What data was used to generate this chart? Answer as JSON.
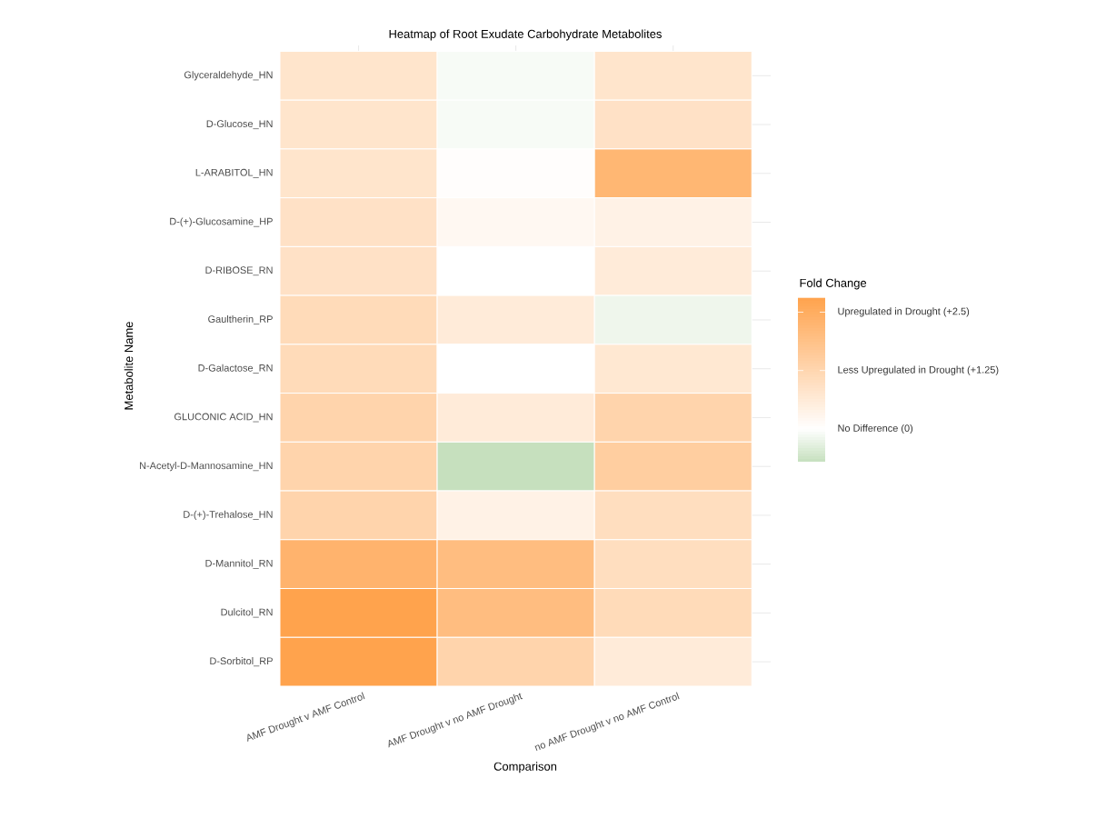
{
  "chart_data": {
    "type": "heatmap",
    "title": "Heatmap of Root Exudate Carbohydrate Metabolites",
    "xlabel": "Comparison",
    "ylabel": "Metabolite Name",
    "clabel": "Fold Change",
    "categories": [
      "AMF Drought v AMF Control",
      "AMF Drought v no AMF Drought",
      "no AMF Drought v no AMF Control"
    ],
    "y_categories": [
      "Glyceraldehyde_HN",
      "D-Glucose_HN",
      "L-ARABITOL_HN",
      "D-(+)-Glucosamine_HP",
      "D-RIBOSE_RN",
      "Gaultherin_RP",
      "D-Galactose_RN",
      "GLUCONIC ACID_HN",
      "N-Acetyl-D-Mannosamine_HN",
      "D-(+)-Trehalose_HN",
      "D-Mannitol_RN",
      "Dulcitol_RN",
      "D-Sorbitol_RP"
    ],
    "cells": [
      [
        0.8,
        -0.1,
        0.8
      ],
      [
        0.8,
        -0.1,
        0.9
      ],
      [
        0.8,
        0.05,
        2.2
      ],
      [
        0.9,
        0.2,
        0.4
      ],
      [
        0.9,
        0.0,
        0.6
      ],
      [
        1.1,
        0.6,
        -0.2
      ],
      [
        1.1,
        0.0,
        0.7
      ],
      [
        1.3,
        0.6,
        1.3
      ],
      [
        1.3,
        -0.7,
        1.5
      ],
      [
        1.3,
        0.4,
        1.0
      ],
      [
        2.3,
        2.0,
        1.0
      ],
      [
        2.8,
        2.0,
        1.1
      ],
      [
        2.8,
        1.3,
        0.6
      ]
    ],
    "clim": [
      -0.7,
      2.8
    ],
    "cticks": [
      {
        "value": 2.5,
        "label": "Upregulated in Drought (+2.5)"
      },
      {
        "value": 1.25,
        "label": "Less Upregulated in Drought (+1.25)"
      },
      {
        "value": 0,
        "label": "No Difference (0)"
      }
    ],
    "grid": true
  }
}
